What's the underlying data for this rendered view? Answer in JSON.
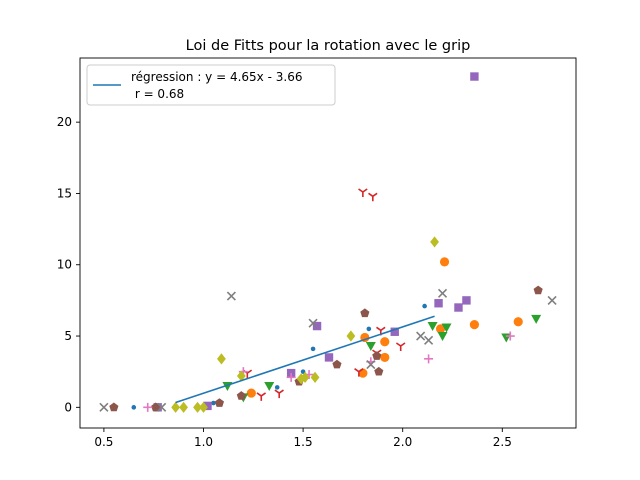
{
  "chart_data": {
    "type": "scatter",
    "title": "Loi de Fitts pour la rotation avec le grip",
    "xlabel": "",
    "ylabel": "",
    "xlim": [
      0.38,
      2.87
    ],
    "ylim": [
      -1.45,
      24.5
    ],
    "xticks": [
      0.5,
      1.0,
      1.5,
      2.0,
      2.5
    ],
    "xtick_labels": [
      "0.5",
      "1.0",
      "1.5",
      "2.0",
      "2.5"
    ],
    "yticks": [
      0,
      5,
      10,
      15,
      20
    ],
    "ytick_labels": [
      "0",
      "5",
      "10",
      "15",
      "20"
    ],
    "grid": false,
    "legend": {
      "position": "top-left",
      "line1": "régression : y = 4.65x - 3.66",
      "line2": " r = 0.68"
    },
    "regression": {
      "slope": 4.65,
      "intercept": -3.66,
      "x_range": [
        0.86,
        2.16
      ],
      "color": "#1f77b4",
      "r": 0.68
    },
    "series": [
      {
        "name": "s1",
        "marker": "point",
        "color": "#1f77b4",
        "points": [
          [
            0.65,
            0.0
          ],
          [
            1.83,
            5.5
          ],
          [
            2.11,
            7.1
          ],
          [
            1.55,
            4.1
          ],
          [
            1.37,
            1.4
          ],
          [
            1.05,
            0.3
          ],
          [
            1.5,
            2.5
          ]
        ]
      },
      {
        "name": "s2",
        "marker": "circle",
        "color": "#ff7f0e",
        "points": [
          [
            1.24,
            1.0
          ],
          [
            1.8,
            2.4
          ],
          [
            1.91,
            4.6
          ],
          [
            1.91,
            3.5
          ],
          [
            1.81,
            4.9
          ],
          [
            2.19,
            5.5
          ],
          [
            2.21,
            10.2
          ],
          [
            2.36,
            5.8
          ],
          [
            2.58,
            6.0
          ]
        ]
      },
      {
        "name": "s3",
        "marker": "triangle_down",
        "color": "#2ca02c",
        "points": [
          [
            1.12,
            1.5
          ],
          [
            1.2,
            0.7
          ],
          [
            1.33,
            1.5
          ],
          [
            1.84,
            4.3
          ],
          [
            2.15,
            5.7
          ],
          [
            2.2,
            5.0
          ],
          [
            2.22,
            5.6
          ],
          [
            2.52,
            4.9
          ],
          [
            2.67,
            6.2
          ]
        ]
      },
      {
        "name": "s4",
        "marker": "tri_down",
        "color": "#d62728",
        "points": [
          [
            1.22,
            2.4
          ],
          [
            1.29,
            0.8
          ],
          [
            1.38,
            1.0
          ],
          [
            1.8,
            15.1
          ],
          [
            1.85,
            14.8
          ],
          [
            1.87,
            3.8
          ],
          [
            1.89,
            5.4
          ],
          [
            1.99,
            4.3
          ],
          [
            1.78,
            2.5
          ]
        ]
      },
      {
        "name": "s5",
        "marker": "square",
        "color": "#9467bd",
        "points": [
          [
            0.77,
            0.0
          ],
          [
            1.02,
            0.1
          ],
          [
            1.44,
            2.4
          ],
          [
            1.57,
            5.7
          ],
          [
            1.63,
            3.5
          ],
          [
            1.96,
            5.3
          ],
          [
            2.18,
            7.3
          ],
          [
            2.28,
            7.0
          ],
          [
            2.32,
            7.5
          ],
          [
            2.36,
            23.2
          ]
        ]
      },
      {
        "name": "s6",
        "marker": "pentagon",
        "color": "#8c564b",
        "points": [
          [
            0.55,
            0.0
          ],
          [
            0.76,
            0.0
          ],
          [
            1.08,
            0.3
          ],
          [
            1.19,
            0.8
          ],
          [
            1.48,
            1.8
          ],
          [
            1.67,
            3.0
          ],
          [
            1.81,
            6.6
          ],
          [
            1.88,
            2.5
          ],
          [
            1.87,
            3.6
          ],
          [
            2.68,
            8.2
          ]
        ]
      },
      {
        "name": "s7",
        "marker": "plus",
        "color": "#e377c2",
        "points": [
          [
            0.72,
            0.0
          ],
          [
            1.2,
            2.5
          ],
          [
            1.44,
            2.1
          ],
          [
            1.53,
            2.3
          ],
          [
            1.84,
            3.2
          ],
          [
            2.13,
            3.4
          ],
          [
            2.54,
            5.0
          ]
        ]
      },
      {
        "name": "s8",
        "marker": "x",
        "color": "#7f7f7f",
        "points": [
          [
            0.5,
            0.0
          ],
          [
            0.79,
            0.0
          ],
          [
            1.14,
            7.8
          ],
          [
            1.55,
            5.9
          ],
          [
            1.84,
            3.0
          ],
          [
            2.09,
            5.0
          ],
          [
            2.13,
            4.7
          ],
          [
            2.2,
            8.0
          ],
          [
            2.75,
            7.5
          ]
        ]
      },
      {
        "name": "s9",
        "marker": "diamond",
        "color": "#bcbd22",
        "points": [
          [
            0.86,
            0.0
          ],
          [
            0.9,
            0.0
          ],
          [
            0.97,
            0.0
          ],
          [
            1.0,
            0.0
          ],
          [
            1.09,
            3.4
          ],
          [
            1.19,
            2.2
          ],
          [
            1.49,
            2.0
          ],
          [
            1.51,
            2.1
          ],
          [
            1.56,
            2.1
          ],
          [
            1.74,
            5.0
          ],
          [
            2.16,
            11.6
          ]
        ]
      }
    ]
  }
}
